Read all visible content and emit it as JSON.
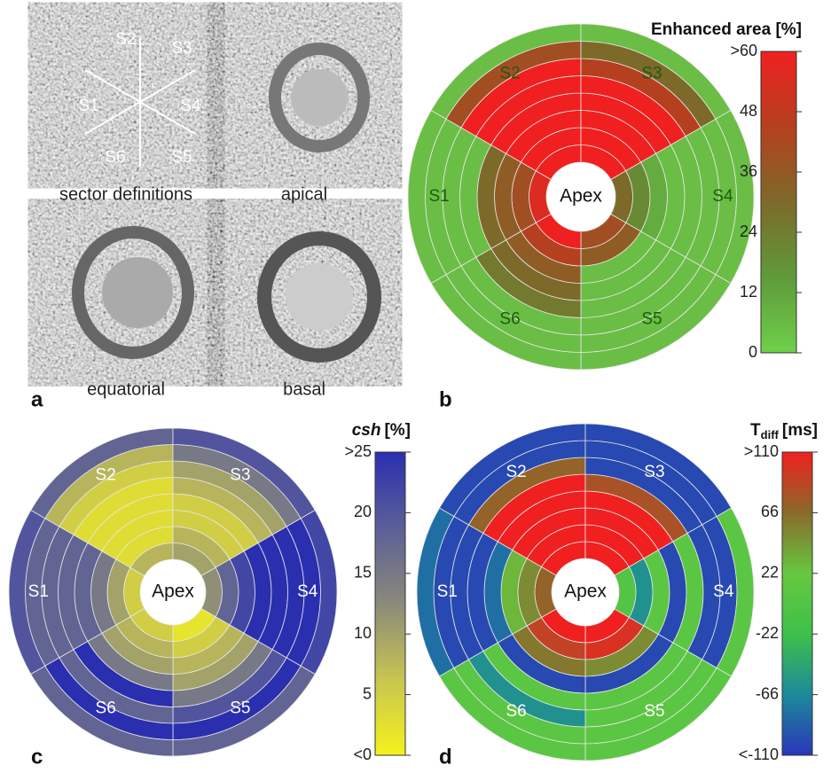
{
  "figure": {
    "panel_labels": [
      "a",
      "b",
      "c",
      "d"
    ],
    "sector_labels": [
      "S1",
      "S2",
      "S3",
      "S4",
      "S5",
      "S6"
    ],
    "captions": [
      "sector definitions",
      "apical",
      "equatorial",
      "basal"
    ]
  },
  "chart_data": [
    {
      "type": "bullseye",
      "title": "Enhanced area [%]",
      "center_label": "Apex",
      "label_color": "#1f5a12",
      "categories": [
        "S1",
        "S2",
        "S3",
        "S4",
        "S5",
        "S6"
      ],
      "values": [
        [
          55,
          40,
          35,
          30,
          5,
          5,
          5,
          5
        ],
        [
          60,
          60,
          60,
          60,
          60,
          60,
          40,
          5
        ],
        [
          60,
          60,
          60,
          60,
          60,
          45,
          30,
          5
        ],
        [
          30,
          20,
          10,
          5,
          5,
          5,
          5,
          5
        ],
        [
          40,
          35,
          5,
          5,
          5,
          5,
          5,
          5
        ],
        [
          60,
          45,
          35,
          30,
          25,
          5,
          5,
          5
        ]
      ],
      "clim": [
        0,
        60
      ],
      "colormap": [
        "#6fd04a",
        "#5f9a3a",
        "#7d6a2a",
        "#b5401f",
        "#f02020"
      ],
      "cticks": [
        0,
        12,
        24,
        36,
        48,
        {
          "value": 60,
          "label": ">60"
        }
      ]
    },
    {
      "type": "bullseye",
      "title": "csh",
      "title_unit": "[%]",
      "center_label": "Apex",
      "label_color": "#ffffff",
      "categories": [
        "S1",
        "S2",
        "S3",
        "S4",
        "S5",
        "S6"
      ],
      "values": [
        [
          5,
          10,
          15,
          18,
          18,
          18,
          18,
          20
        ],
        [
          8,
          3,
          3,
          3,
          3,
          5,
          8,
          18
        ],
        [
          10,
          8,
          5,
          5,
          8,
          10,
          15,
          20
        ],
        [
          12,
          18,
          22,
          25,
          25,
          25,
          25,
          22
        ],
        [
          2,
          5,
          8,
          10,
          15,
          20,
          25,
          18
        ],
        [
          5,
          8,
          10,
          15,
          25,
          18,
          25,
          18
        ]
      ],
      "clim": [
        0,
        25
      ],
      "colormap": [
        "#f4f21c",
        "#c8c550",
        "#8a8a7a",
        "#5c5f98",
        "#2a2fb0"
      ],
      "cticks": [
        {
          "value": 0,
          "label": "<0"
        },
        5,
        10,
        15,
        20,
        {
          "value": 25,
          "label": ">25"
        }
      ]
    },
    {
      "type": "bullseye",
      "title": "T",
      "title_sub": "diff",
      "title_unit": "[ms]",
      "center_label": "Apex",
      "label_color": "#ffffff",
      "categories": [
        "S1",
        "S2",
        "S3",
        "S4",
        "S5",
        "S6"
      ],
      "values": [
        [
          70,
          50,
          30,
          -80,
          -100,
          -100,
          -100,
          -80
        ],
        [
          110,
          110,
          110,
          110,
          110,
          70,
          -100,
          -100
        ],
        [
          110,
          110,
          110,
          110,
          80,
          -100,
          -100,
          -100
        ],
        [
          0,
          -60,
          10,
          -100,
          10,
          -100,
          -100,
          10
        ],
        [
          110,
          100,
          50,
          -100,
          10,
          10,
          10,
          10
        ],
        [
          110,
          90,
          60,
          -100,
          10,
          -60,
          10,
          10
        ]
      ],
      "clim": [
        -110,
        110
      ],
      "colormap": [
        "#2a36b8",
        "#1c8a9a",
        "#3fc04a",
        "#66c840",
        "#8a6a2a",
        "#f02020"
      ],
      "cticks": [
        {
          "value": -110,
          "label": "<-110"
        },
        -66,
        -22,
        22,
        66,
        {
          "value": 110,
          "label": ">110"
        }
      ]
    }
  ]
}
